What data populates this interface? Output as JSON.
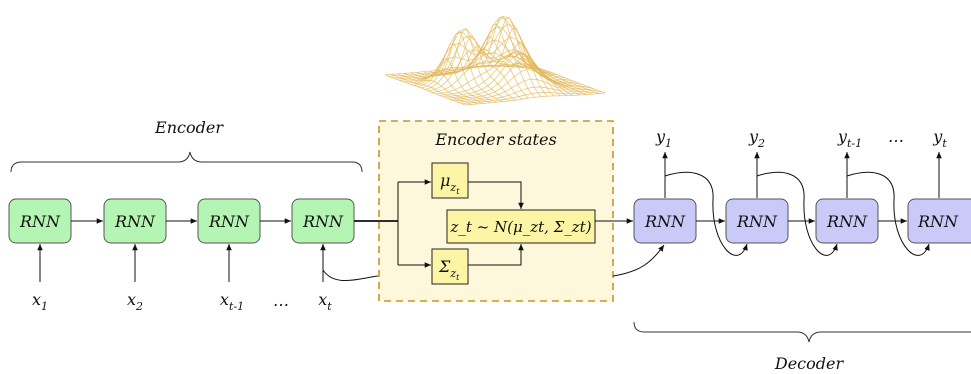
{
  "encoder": {
    "title": "Encoder",
    "cells": [
      "RNN",
      "RNN",
      "RNN",
      "RNN"
    ],
    "inputs": [
      {
        "base": "x",
        "sub": "1"
      },
      {
        "base": "x",
        "sub": "2"
      },
      {
        "base": "x",
        "sub": "t-1"
      },
      {
        "base": "x",
        "sub": "t"
      }
    ],
    "ellipsis": "…"
  },
  "encoder_states": {
    "title": "Encoder states",
    "mu": {
      "symbol": "μ",
      "sub": "z",
      "subsub": "t"
    },
    "sigma": {
      "symbol": "Σ",
      "sub": "z",
      "subsub": "t"
    },
    "sample": "z_t ~ N(μ_zt, Σ_zt)",
    "fill_color": "#fdf8dc",
    "border_color": "#c6962a"
  },
  "decoder": {
    "title": "Decoder",
    "cells": [
      "RNN",
      "RNN",
      "RNN",
      "RNN"
    ],
    "outputs": [
      {
        "base": "y",
        "sub": "1"
      },
      {
        "base": "y",
        "sub": "2"
      },
      {
        "base": "y",
        "sub": "t-1"
      },
      {
        "base": "y",
        "sub": "t"
      }
    ],
    "ellipsis": "…"
  },
  "colors": {
    "encoder_cell": "#b5f5b3",
    "decoder_cell": "#c9caf7",
    "state_box": "#fdf5a6",
    "surface": "#e3b85a"
  },
  "icons": {
    "surface": "gaussian-surface-icon"
  }
}
